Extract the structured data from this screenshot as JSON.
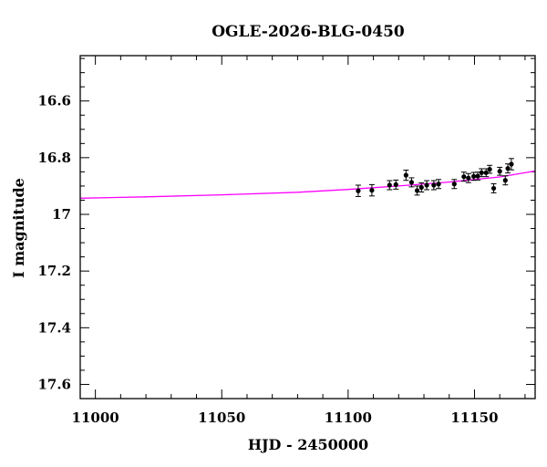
{
  "chart_data": {
    "type": "scatter",
    "title": "OGLE-2026-BLG-0450",
    "xlabel": "HJD - 2450000",
    "ylabel": "I magnitude",
    "xlim": [
      10994,
      11174
    ],
    "ylim": [
      17.65,
      16.44
    ],
    "y_inverted": true,
    "grid": false,
    "legend": "none",
    "x_ticks": [
      11000,
      11050,
      11100,
      11150
    ],
    "x_tick_labels": [
      "11000",
      "11050",
      "11100",
      "11150"
    ],
    "y_ticks": [
      16.6,
      16.8,
      17,
      17.2,
      17.4,
      17.6
    ],
    "y_tick_labels": [
      "16.6",
      "16.8",
      "17",
      "17.2",
      "17.4",
      "17.6"
    ],
    "colors": {
      "model": "#ff00ff",
      "points": "#000000",
      "frame": "#000000"
    },
    "series": [
      {
        "kind": "points",
        "x": [
          11104.0,
          11109.4,
          11116.4,
          11118.9,
          11122.9,
          11125.1,
          11127.3,
          11129.0,
          11131.1,
          11133.9,
          11135.8,
          11142.0,
          11145.8,
          11147.6,
          11149.7,
          11151.3,
          11152.8,
          11154.6,
          11156.0,
          11157.6,
          11160.0,
          11162.2,
          11163.2,
          11164.6
        ],
        "y": [
          16.917,
          16.915,
          16.897,
          16.895,
          16.862,
          16.887,
          16.916,
          16.905,
          16.897,
          16.897,
          16.893,
          16.893,
          16.867,
          16.872,
          16.866,
          16.865,
          16.853,
          16.853,
          16.841,
          16.908,
          16.848,
          16.88,
          16.838,
          16.823
        ],
        "err": [
          0.02,
          0.02,
          0.016,
          0.016,
          0.018,
          0.016,
          0.016,
          0.016,
          0.016,
          0.016,
          0.016,
          0.016,
          0.016,
          0.016,
          0.014,
          0.014,
          0.014,
          0.014,
          0.014,
          0.016,
          0.014,
          0.016,
          0.016,
          0.02
        ]
      },
      {
        "kind": "model",
        "x": [
          10994,
          11020,
          11050,
          11080,
          11100,
          11120,
          11140,
          11160,
          11174
        ],
        "y": [
          16.943,
          16.938,
          16.931,
          16.922,
          16.912,
          16.9,
          16.886,
          16.868,
          16.847
        ]
      }
    ]
  }
}
